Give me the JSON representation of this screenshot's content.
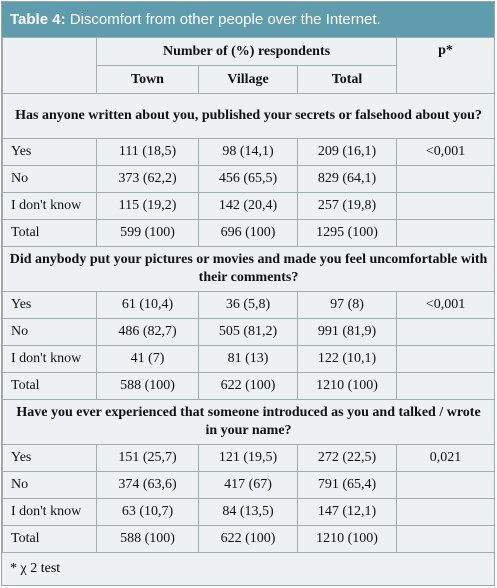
{
  "title": {
    "label": "Table 4:",
    "text": "Discomfort from other people over the Internet."
  },
  "header": {
    "group": "Number of (%) respondents",
    "p": "p*",
    "columns": [
      "Town",
      "Village",
      "Total"
    ]
  },
  "sections": [
    {
      "question": "Has anyone written about you, published your secrets or falsehood about you?",
      "p": "<0,001",
      "rows": [
        [
          "Yes",
          "111 (18,5)",
          "98 (14,1)",
          "209 (16,1)"
        ],
        [
          "No",
          "373 (62,2)",
          "456 (65,5)",
          "829 (64,1)"
        ],
        [
          "I don't know",
          "115 (19,2)",
          "142 (20,4)",
          "257 (19,8)"
        ],
        [
          "Total",
          "599 (100)",
          "696 (100)",
          "1295 (100)"
        ]
      ]
    },
    {
      "question": "Did anybody put your pictures or movies and made you feel uncomfortable with their comments?",
      "p": "<0,001",
      "rows": [
        [
          "Yes",
          "61 (10,4)",
          "36 (5,8)",
          "97 (8)"
        ],
        [
          "No",
          "486 (82,7)",
          "505 (81,2)",
          "991 (81,9)"
        ],
        [
          "I don't know",
          "41 (7)",
          "81 (13)",
          "122 (10,1)"
        ],
        [
          "Total",
          "588 (100)",
          "622 (100)",
          "1210 (100)"
        ]
      ]
    },
    {
      "question": "Have you ever experienced that someone introduced as you and talked / wrote in your name?",
      "p": "0,021",
      "rows": [
        [
          "Yes",
          "151 (25,7)",
          "121 (19,5)",
          "272 (22,5)"
        ],
        [
          "No",
          "374 (63,6)",
          "417 (67)",
          "791 (65,4)"
        ],
        [
          "I don't know",
          "63 (10,7)",
          "84 (13,5)",
          "147 (12,1)"
        ],
        [
          "Total",
          "588 (100)",
          "622 (100)",
          "1210 (100)"
        ]
      ]
    }
  ],
  "footnote": "* χ 2 test"
}
